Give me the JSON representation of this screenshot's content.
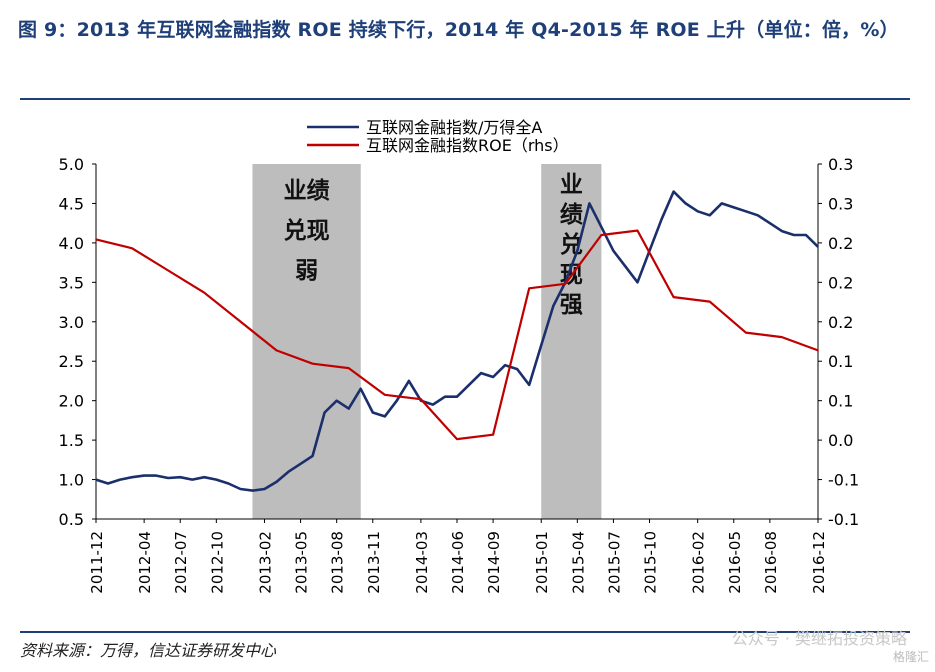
{
  "title": "图  9：2013 年互联网金融指数 ROE 持续下行，2014 年 Q4-2015 年 ROE 上升（单位：倍，%）",
  "source": "资料来源：万得，信达证券研发中心",
  "watermark": "公众号 · 樊继拓投资策略",
  "watermark_corner": "格隆汇",
  "colors": {
    "index_line": "#1a2f6b",
    "roe_line": "#c00000",
    "shade": "#bdbdbd",
    "title": "#1f3f78"
  },
  "chart_data": {
    "type": "line",
    "legend_position": "top-center",
    "grid": false,
    "x_ticks": [
      "2011-12",
      "2012-04",
      "2012-07",
      "2012-10",
      "2013-02",
      "2013-05",
      "2013-08",
      "2013-11",
      "2014-03",
      "2014-06",
      "2014-09",
      "2015-01",
      "2015-04",
      "2015-07",
      "2015-10",
      "2016-02",
      "2016-05",
      "2016-08",
      "2016-12"
    ],
    "y_left": {
      "range": [
        0.5,
        5.0
      ],
      "ticks": [
        "0.5",
        "1.0",
        "1.5",
        "2.0",
        "2.5",
        "3.0",
        "3.5",
        "4.0",
        "4.5",
        "5.0"
      ]
    },
    "y_right": {
      "range": [
        -0.1,
        0.3
      ],
      "ticks": [
        "-0.1",
        "-0.1",
        "0.0",
        "0.1",
        "0.1",
        "0.2",
        "0.2",
        "0.2",
        "0.3",
        "0.3"
      ]
    },
    "shaded_regions": [
      {
        "x_start": "2013-01",
        "x_end": "2013-10",
        "label": [
          "业绩",
          "兑现",
          "弱"
        ]
      },
      {
        "x_start": "2015-01",
        "x_end": "2015-06",
        "label": [
          "业绩",
          "兑现",
          "强"
        ]
      }
    ],
    "series": [
      {
        "name": "互联网金融指数/万得全A",
        "axis": "left",
        "x": [
          "2011-12",
          "2012-01",
          "2012-02",
          "2012-03",
          "2012-04",
          "2012-05",
          "2012-06",
          "2012-07",
          "2012-08",
          "2012-09",
          "2012-10",
          "2012-11",
          "2012-12",
          "2013-01",
          "2013-02",
          "2013-03",
          "2013-04",
          "2013-05",
          "2013-06",
          "2013-07",
          "2013-08",
          "2013-09",
          "2013-10",
          "2013-11",
          "2013-12",
          "2014-01",
          "2014-02",
          "2014-03",
          "2014-04",
          "2014-05",
          "2014-06",
          "2014-07",
          "2014-08",
          "2014-09",
          "2014-10",
          "2014-11",
          "2014-12",
          "2015-01",
          "2015-02",
          "2015-03",
          "2015-04",
          "2015-05",
          "2015-06",
          "2015-07",
          "2015-08",
          "2015-09",
          "2015-10",
          "2015-11",
          "2015-12",
          "2016-01",
          "2016-02",
          "2016-03",
          "2016-04",
          "2016-05",
          "2016-06",
          "2016-07",
          "2016-08",
          "2016-09",
          "2016-10",
          "2016-11",
          "2016-12"
        ],
        "values": [
          1.0,
          0.95,
          1.0,
          1.03,
          1.05,
          1.05,
          1.02,
          1.03,
          1.0,
          1.03,
          1.0,
          0.95,
          0.88,
          0.86,
          0.88,
          0.97,
          1.1,
          1.2,
          1.3,
          1.85,
          2.0,
          1.9,
          2.15,
          1.85,
          1.8,
          2.0,
          2.25,
          2.0,
          1.95,
          2.05,
          2.05,
          2.2,
          2.35,
          2.3,
          2.45,
          2.4,
          2.2,
          2.7,
          3.2,
          3.5,
          3.9,
          4.5,
          4.2,
          3.9,
          3.7,
          3.5,
          3.9,
          4.3,
          4.65,
          4.5,
          4.4,
          4.35,
          4.5,
          4.45,
          4.4,
          4.35,
          4.25,
          4.15,
          4.1,
          4.1,
          3.95
        ]
      },
      {
        "name": "互联网金融指数ROE（rhs）",
        "axis": "right",
        "x": [
          "2011-12",
          "2012-03",
          "2012-06",
          "2012-09",
          "2013-03",
          "2013-06",
          "2013-09",
          "2013-12",
          "2014-03",
          "2014-06",
          "2014-09",
          "2014-12",
          "2015-03",
          "2015-06",
          "2015-09",
          "2015-12",
          "2016-03",
          "2016-06",
          "2016-09",
          "2016-12"
        ],
        "values": [
          0.215,
          0.205,
          0.18,
          0.155,
          0.09,
          0.075,
          0.07,
          0.04,
          0.035,
          -0.01,
          -0.005,
          0.16,
          0.165,
          0.22,
          0.225,
          0.15,
          0.145,
          0.11,
          0.105,
          0.09
        ]
      }
    ]
  }
}
